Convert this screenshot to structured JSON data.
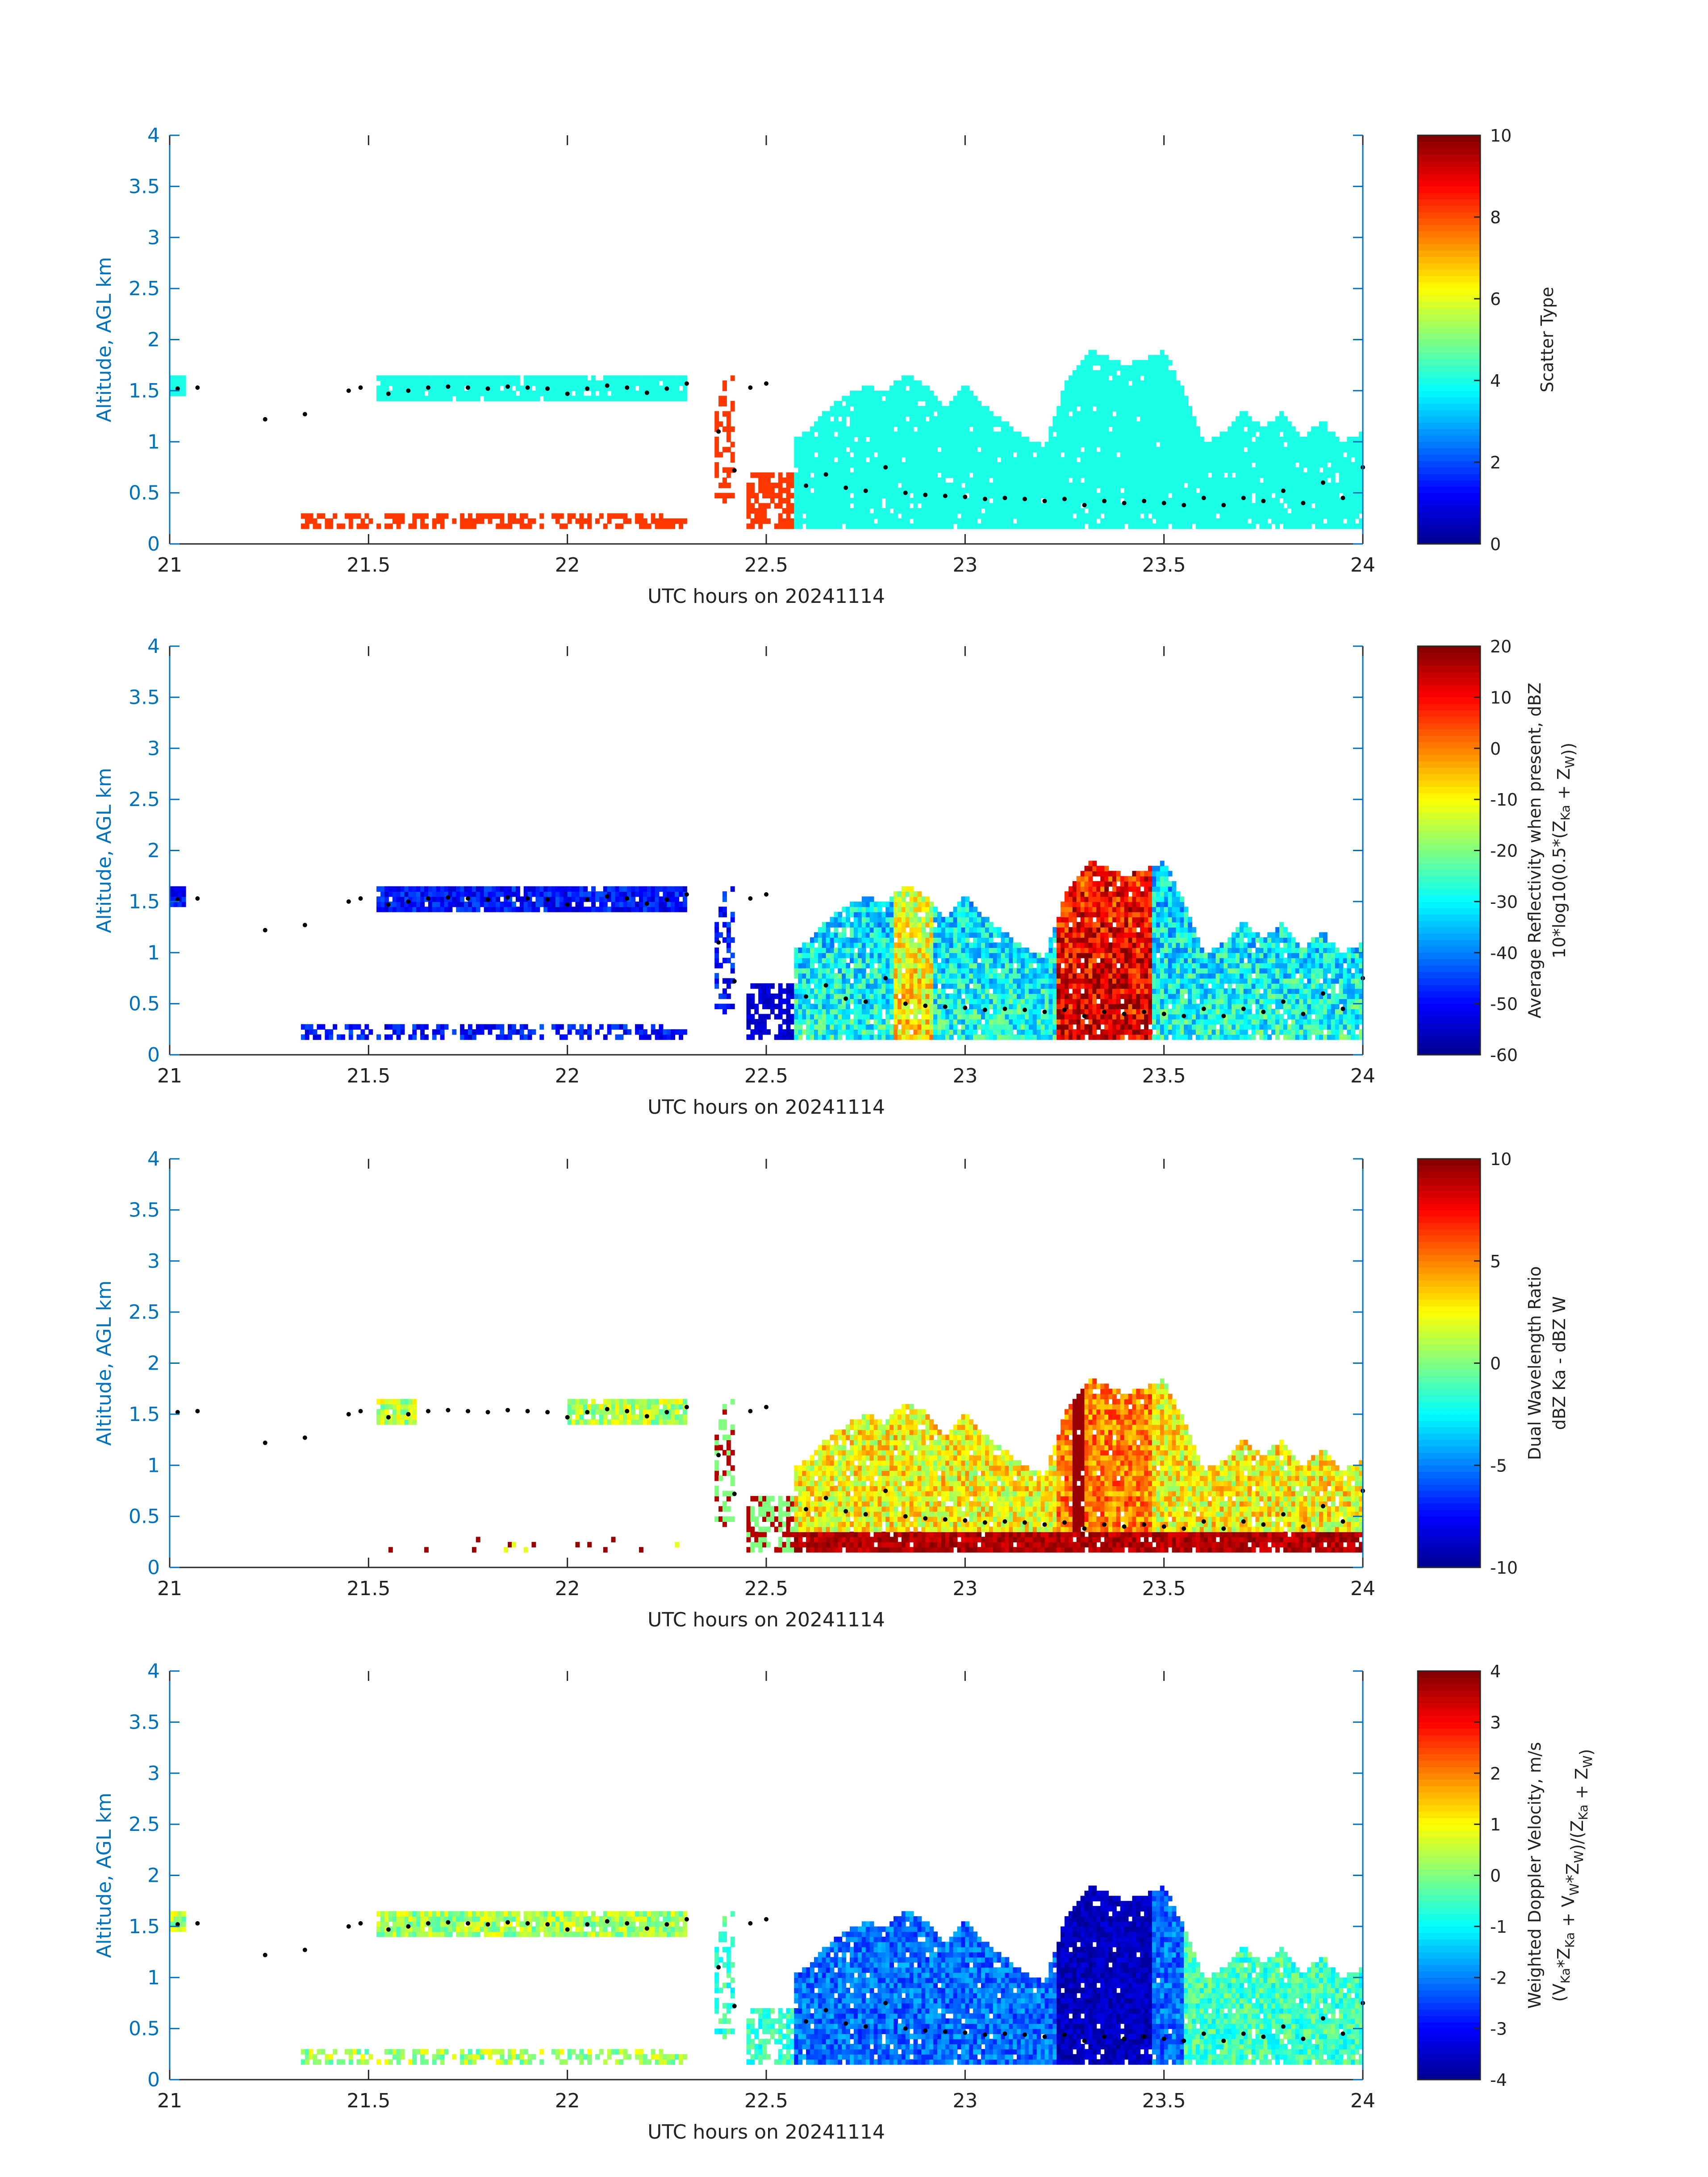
{
  "figure": {
    "panels_count": 4
  },
  "colormap": [
    "#00008F",
    "#0000FF",
    "#0080FF",
    "#00FFFF",
    "#80FF80",
    "#FFFF00",
    "#FF8000",
    "#FF0000",
    "#800000"
  ],
  "chart_data": [
    {
      "type": "heatmap",
      "id": "panel-scatter-type",
      "xlabel": "UTC hours on 20241114",
      "ylabel": "Altitude, AGL km",
      "xlim": [
        21,
        24
      ],
      "ylim": [
        0,
        4
      ],
      "xticks": [
        "21",
        "21.5",
        "22",
        "22.5",
        "23",
        "23.5",
        "24"
      ],
      "yticks": [
        "0",
        "0.5",
        "1",
        "1.5",
        "2",
        "2.5",
        "3",
        "3.5",
        "4"
      ],
      "colorbar": {
        "label_line1": "Scatter Type",
        "label_line2": "",
        "clim": [
          0,
          10
        ],
        "ticks": [
          "0",
          "2",
          "4",
          "6",
          "8",
          "10"
        ]
      },
      "mode": "type",
      "cloud_base_dots": true
    },
    {
      "type": "heatmap",
      "id": "panel-reflectivity",
      "xlabel": "UTC hours on 20241114",
      "ylabel": "Altitude, AGL km",
      "xlim": [
        21,
        24
      ],
      "ylim": [
        0,
        4
      ],
      "xticks": [
        "21",
        "21.5",
        "22",
        "22.5",
        "23",
        "23.5",
        "24"
      ],
      "yticks": [
        "0",
        "0.5",
        "1",
        "1.5",
        "2",
        "2.5",
        "3",
        "3.5",
        "4"
      ],
      "colorbar": {
        "label_line1": "Average Reflectivity when present, dBZ",
        "label_line2": "10*log10(0.5*(Z_Ka + Z_W))",
        "clim": [
          -60,
          20
        ],
        "ticks": [
          "-60",
          "-50",
          "-40",
          "-30",
          "-20",
          "-10",
          "0",
          "10",
          "20"
        ]
      },
      "mode": "refl",
      "cloud_base_dots": true
    },
    {
      "type": "heatmap",
      "id": "panel-dwr",
      "xlabel": "UTC hours on 20241114",
      "ylabel": "Altitude, AGL km",
      "xlim": [
        21,
        24
      ],
      "ylim": [
        0,
        4
      ],
      "xticks": [
        "21",
        "21.5",
        "22",
        "22.5",
        "23",
        "23.5",
        "24"
      ],
      "yticks": [
        "0",
        "0.5",
        "1",
        "1.5",
        "2",
        "2.5",
        "3",
        "3.5",
        "4"
      ],
      "colorbar": {
        "label_line1": "Dual Wavelength Ratio",
        "label_line2": "dBZ Ka - dBZ W",
        "clim": [
          -10,
          10
        ],
        "ticks": [
          "-10",
          "-5",
          "0",
          "5",
          "10"
        ]
      },
      "mode": "dwr",
      "cloud_base_dots": true
    },
    {
      "type": "heatmap",
      "id": "panel-velocity",
      "xlabel": "UTC hours on 20241114",
      "ylabel": "Altitude, AGL km",
      "xlim": [
        21,
        24
      ],
      "ylim": [
        0,
        4
      ],
      "xticks": [
        "21",
        "21.5",
        "22",
        "22.5",
        "23",
        "23.5",
        "24"
      ],
      "yticks": [
        "0",
        "0.5",
        "1",
        "1.5",
        "2",
        "2.5",
        "3",
        "3.5",
        "4"
      ],
      "colorbar": {
        "label_line1": "Weighted Doppler Velocity, m/s",
        "label_line2": "(V_Ka*Z_Ka + V_W*Z_W)/(Z_Ka + Z_W)",
        "clim": [
          -4,
          4
        ],
        "ticks": [
          "-4",
          "-3",
          "-2",
          "-1",
          "0",
          "1",
          "2",
          "3",
          "4"
        ]
      },
      "mode": "vel",
      "cloud_base_dots": true
    }
  ],
  "cloud_base_km": [
    [
      21.02,
      1.52
    ],
    [
      21.07,
      1.53
    ],
    [
      21.24,
      1.22
    ],
    [
      21.34,
      1.27
    ],
    [
      21.45,
      1.5
    ],
    [
      21.48,
      1.53
    ],
    [
      21.55,
      1.47
    ],
    [
      21.6,
      1.5
    ],
    [
      21.65,
      1.53
    ],
    [
      21.7,
      1.54
    ],
    [
      21.75,
      1.53
    ],
    [
      21.8,
      1.52
    ],
    [
      21.85,
      1.54
    ],
    [
      21.9,
      1.53
    ],
    [
      21.95,
      1.52
    ],
    [
      22.0,
      1.47
    ],
    [
      22.05,
      1.52
    ],
    [
      22.1,
      1.55
    ],
    [
      22.15,
      1.53
    ],
    [
      22.2,
      1.48
    ],
    [
      22.25,
      1.52
    ],
    [
      22.3,
      1.57
    ],
    [
      22.38,
      1.1
    ],
    [
      22.42,
      0.72
    ],
    [
      22.46,
      1.53
    ],
    [
      22.5,
      1.57
    ],
    [
      22.6,
      0.57
    ],
    [
      22.65,
      0.68
    ],
    [
      22.7,
      0.55
    ],
    [
      22.75,
      0.52
    ],
    [
      22.8,
      0.75
    ],
    [
      22.85,
      0.5
    ],
    [
      22.9,
      0.48
    ],
    [
      22.95,
      0.47
    ],
    [
      23.0,
      0.46
    ],
    [
      23.05,
      0.44
    ],
    [
      23.1,
      0.45
    ],
    [
      23.15,
      0.44
    ],
    [
      23.2,
      0.42
    ],
    [
      23.25,
      0.44
    ],
    [
      23.3,
      0.38
    ],
    [
      23.35,
      0.42
    ],
    [
      23.4,
      0.4
    ],
    [
      23.45,
      0.42
    ],
    [
      23.5,
      0.4
    ],
    [
      23.55,
      0.38
    ],
    [
      23.6,
      0.45
    ],
    [
      23.65,
      0.38
    ],
    [
      23.7,
      0.45
    ],
    [
      23.75,
      0.42
    ],
    [
      23.8,
      0.52
    ],
    [
      23.85,
      0.4
    ],
    [
      23.9,
      0.6
    ],
    [
      23.95,
      0.45
    ],
    [
      24.0,
      0.75
    ]
  ]
}
